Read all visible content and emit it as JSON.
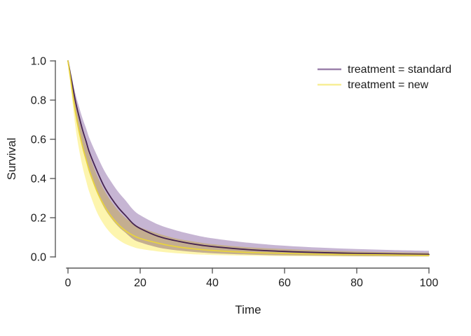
{
  "chart_data": {
    "type": "area",
    "title": "",
    "xlabel": "Time",
    "ylabel": "Survival",
    "xlim": [
      0,
      100
    ],
    "ylim": [
      0,
      1
    ],
    "grid": false,
    "legend_position": "top-right",
    "x_tick_values": [
      0,
      20,
      40,
      60,
      80,
      100
    ],
    "x_tick_labels": [
      "0",
      "20",
      "40",
      "60",
      "80",
      "100"
    ],
    "y_tick_values": [
      0,
      0.2,
      0.4,
      0.6,
      0.8,
      1.0
    ],
    "y_tick_labels": [
      "0.0",
      "0.2",
      "0.4",
      "0.6",
      "0.8",
      "1.0"
    ],
    "x": [
      0,
      1,
      2,
      3,
      4,
      5,
      6,
      8,
      10,
      12,
      14,
      16,
      18,
      20,
      25,
      30,
      35,
      40,
      50,
      60,
      70,
      80,
      90,
      100
    ],
    "series": [
      {
        "name": "treatment = standard",
        "center": [
          1,
          0.9,
          0.8,
          0.72,
          0.65,
          0.59,
          0.53,
          0.44,
          0.36,
          0.3,
          0.25,
          0.21,
          0.17,
          0.145,
          0.105,
          0.082,
          0.065,
          0.053,
          0.037,
          0.028,
          0.022,
          0.018,
          0.015,
          0.013
        ],
        "upper": [
          1,
          0.919,
          0.836,
          0.769,
          0.708,
          0.656,
          0.602,
          0.519,
          0.442,
          0.382,
          0.33,
          0.287,
          0.242,
          0.213,
          0.165,
          0.135,
          0.112,
          0.095,
          0.072,
          0.057,
          0.047,
          0.04,
          0.035,
          0.031
        ],
        "lower": [
          1,
          0.867,
          0.74,
          0.642,
          0.559,
          0.49,
          0.424,
          0.33,
          0.252,
          0.197,
          0.154,
          0.122,
          0.091,
          0.074,
          0.048,
          0.034,
          0.025,
          0.019,
          0.012,
          0.008,
          0.006,
          0.004,
          0.003,
          0.003
        ],
        "line_color": "#46244f",
        "band_color": "#c6b5d3",
        "legend_color": "#9b80aa"
      },
      {
        "name": "treatment = new",
        "center": [
          1,
          0.87,
          0.745,
          0.646,
          0.565,
          0.497,
          0.436,
          0.336,
          0.262,
          0.206,
          0.164,
          0.132,
          0.11,
          0.094,
          0.07,
          0.052,
          0.041,
          0.033,
          0.023,
          0.018,
          0.014,
          0.012,
          0.01,
          0.008
        ],
        "upper": [
          1,
          0.895,
          0.79,
          0.705,
          0.633,
          0.572,
          0.515,
          0.418,
          0.342,
          0.282,
          0.235,
          0.198,
          0.171,
          0.151,
          0.119,
          0.094,
          0.078,
          0.065,
          0.049,
          0.04,
          0.033,
          0.028,
          0.024,
          0.021
        ],
        "lower": [
          1,
          0.829,
          0.672,
          0.554,
          0.463,
          0.389,
          0.326,
          0.229,
          0.164,
          0.118,
          0.087,
          0.065,
          0.051,
          0.041,
          0.028,
          0.019,
          0.013,
          0.01,
          0.006,
          0.004,
          0.003,
          0.002,
          0.002,
          0.002
        ],
        "line_color": "#e8d33e",
        "band_color": "#fdf5ae",
        "legend_color": "#f7ee96"
      }
    ]
  },
  "colors": {
    "axis_line": "#5a5a5a",
    "text": "#1c1c1c",
    "background": "#ffffff"
  }
}
